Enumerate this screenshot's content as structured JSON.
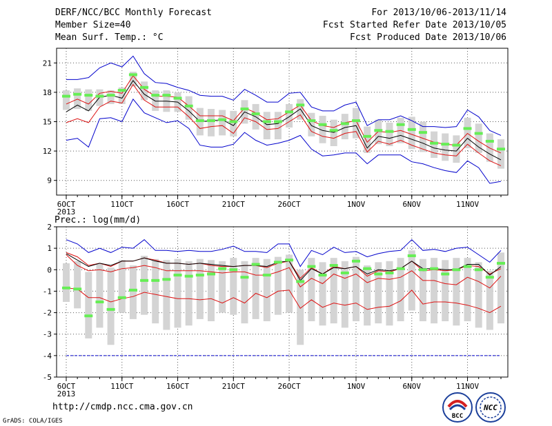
{
  "header": {
    "title": "DERF/NCC/BCC Monthly Forecast",
    "member_size": "Member Size=40",
    "variable": "Mean Surf. Temp.: °C",
    "period": "For 2013/10/06-2013/11/14",
    "started": "Fcst Started Refer Date 2013/10/05",
    "produced": "Fcst Produced Date 2013/10/06"
  },
  "footer": {
    "url": "http://cmdp.ncc.cma.gov.cn",
    "grads": "GrADS: COLA/IGES",
    "logo_left_text": "BCC",
    "logo_right_text": "NCC"
  },
  "colors": {
    "box": "#d4d4d4",
    "median": "#66ee55",
    "mean": "#000000",
    "spread": "#dd1111",
    "envelope": "#0000cc",
    "grid": "#555555"
  },
  "chart_data": [
    {
      "type": "line",
      "title": "Mean Surf. Temp.: °C",
      "ylim": [
        7.5,
        22.5
      ],
      "yticks": [
        9,
        12,
        15,
        18,
        21
      ],
      "x": [
        "2013-10-06",
        "2013-10-07",
        "2013-10-08",
        "2013-10-09",
        "2013-10-10",
        "2013-10-11",
        "2013-10-12",
        "2013-10-13",
        "2013-10-14",
        "2013-10-15",
        "2013-10-16",
        "2013-10-17",
        "2013-10-18",
        "2013-10-19",
        "2013-10-20",
        "2013-10-21",
        "2013-10-22",
        "2013-10-23",
        "2013-10-24",
        "2013-10-25",
        "2013-10-26",
        "2013-10-27",
        "2013-10-28",
        "2013-10-29",
        "2013-10-30",
        "2013-10-31",
        "2013-11-01",
        "2013-11-02",
        "2013-11-03",
        "2013-11-04",
        "2013-11-05",
        "2013-11-06",
        "2013-11-07",
        "2013-11-08",
        "2013-11-09",
        "2013-11-10",
        "2013-11-11",
        "2013-11-12",
        "2013-11-13",
        "2013-11-14"
      ],
      "xtick_labels": [
        {
          "x": "2013-10-06",
          "label": "6OCT",
          "sub": "2013"
        },
        {
          "x": "2013-10-11",
          "label": "11OCT"
        },
        {
          "x": "2013-10-16",
          "label": "16OCT"
        },
        {
          "x": "2013-10-21",
          "label": "21OCT"
        },
        {
          "x": "2013-10-26",
          "label": "26OCT"
        },
        {
          "x": "2013-11-01",
          "label": "1NOV"
        },
        {
          "x": "2013-11-06",
          "label": "6NOV"
        },
        {
          "x": "2013-11-11",
          "label": "11NOV"
        }
      ],
      "series": [
        {
          "role": "mean",
          "values": [
            16.0,
            16.7,
            16.1,
            17.5,
            17.7,
            17.4,
            19.2,
            17.8,
            17.1,
            17.1,
            17.0,
            16.1,
            15.0,
            15.1,
            15.2,
            14.6,
            16.0,
            15.5,
            14.7,
            14.8,
            15.5,
            16.3,
            14.6,
            14.1,
            13.9,
            14.4,
            14.6,
            12.3,
            13.5,
            13.3,
            13.6,
            13.2,
            12.8,
            12.3,
            12.1,
            12.0,
            13.3,
            12.4,
            11.7,
            11.1
          ]
        },
        {
          "role": "mean_plus_sd",
          "values": [
            16.8,
            17.3,
            16.8,
            17.9,
            18.1,
            17.9,
            19.7,
            18.3,
            17.6,
            17.6,
            17.5,
            16.6,
            15.6,
            15.6,
            15.6,
            15.1,
            16.4,
            15.9,
            15.2,
            15.3,
            16.0,
            16.7,
            15.1,
            14.6,
            14.4,
            14.9,
            15.1,
            12.9,
            14.0,
            13.9,
            14.1,
            13.7,
            13.3,
            12.9,
            12.7,
            12.6,
            13.8,
            13.0,
            12.3,
            11.8
          ]
        },
        {
          "role": "mean_minus_sd",
          "values": [
            14.9,
            15.3,
            14.9,
            16.5,
            17.1,
            16.9,
            18.8,
            17.2,
            16.5,
            16.5,
            16.5,
            15.5,
            14.3,
            14.5,
            14.6,
            13.8,
            15.4,
            15.0,
            14.2,
            14.3,
            15.0,
            15.7,
            14.0,
            13.5,
            13.3,
            13.8,
            14.0,
            11.9,
            13.0,
            12.7,
            13.1,
            12.6,
            12.2,
            11.8,
            11.6,
            11.5,
            12.7,
            11.8,
            11.0,
            10.5
          ]
        },
        {
          "role": "ensemble_max",
          "values": [
            19.3,
            19.3,
            19.5,
            20.5,
            21.0,
            20.6,
            21.7,
            19.9,
            19.0,
            18.9,
            18.5,
            18.2,
            17.7,
            17.6,
            17.6,
            17.2,
            18.3,
            17.7,
            17.0,
            17.0,
            17.9,
            18.0,
            16.5,
            16.1,
            16.1,
            16.7,
            17.0,
            14.6,
            15.2,
            15.2,
            15.6,
            15.1,
            14.5,
            14.5,
            14.4,
            14.5,
            16.2,
            15.5,
            14.1,
            13.6
          ]
        },
        {
          "role": "ensemble_min",
          "values": [
            13.1,
            13.3,
            12.4,
            15.3,
            15.4,
            15.0,
            17.3,
            15.9,
            15.4,
            14.9,
            15.1,
            14.3,
            12.6,
            12.4,
            12.4,
            12.7,
            13.9,
            13.1,
            12.6,
            12.8,
            13.1,
            13.6,
            12.2,
            11.5,
            11.6,
            11.8,
            11.8,
            10.7,
            11.6,
            11.6,
            11.6,
            10.9,
            10.7,
            10.3,
            10.0,
            9.8,
            11.0,
            10.3,
            8.7,
            8.9
          ]
        },
        {
          "role": "median",
          "values": [
            17.6,
            17.8,
            17.7,
            17.6,
            17.7,
            18.2,
            19.8,
            18.5,
            17.7,
            17.7,
            17.4,
            16.6,
            15.1,
            15.1,
            15.2,
            15.0,
            16.3,
            15.8,
            15.0,
            15.0,
            16.0,
            16.7,
            15.1,
            14.7,
            14.1,
            14.8,
            15.1,
            13.5,
            14.1,
            14.0,
            14.7,
            14.2,
            13.9,
            12.8,
            12.7,
            12.6,
            14.3,
            13.8,
            13.0,
            12.2
          ]
        },
        {
          "role": "box_upper",
          "values": [
            18.2,
            18.4,
            18.3,
            18.3,
            18.2,
            18.5,
            20.1,
            19.1,
            18.2,
            18.2,
            18.0,
            17.6,
            16.4,
            16.3,
            16.2,
            16.1,
            17.2,
            16.8,
            16.0,
            16.0,
            16.8,
            17.3,
            15.9,
            15.6,
            15.2,
            15.8,
            16.4,
            14.5,
            15.2,
            14.9,
            15.4,
            15.5,
            15.0,
            14.0,
            13.8,
            13.6,
            15.4,
            14.8,
            13.8,
            13.2
          ]
        },
        {
          "role": "box_lower",
          "values": [
            16.2,
            16.3,
            16.1,
            16.6,
            16.8,
            16.8,
            18.6,
            17.2,
            16.1,
            16.0,
            16.0,
            15.2,
            13.6,
            13.5,
            13.6,
            13.5,
            14.8,
            14.2,
            13.2,
            13.2,
            14.4,
            15.2,
            13.5,
            12.8,
            12.5,
            13.2,
            13.3,
            11.8,
            12.7,
            12.5,
            12.8,
            12.2,
            11.9,
            11.3,
            11.0,
            10.8,
            12.3,
            11.8,
            10.9,
            10.2
          ]
        }
      ]
    },
    {
      "type": "line",
      "title": "Prec.: log(mm/d)",
      "ylim": [
        -5,
        2
      ],
      "yticks": [
        -5,
        -4,
        -3,
        -2,
        -1,
        0,
        1,
        2
      ],
      "x": [
        "2013-10-06",
        "2013-10-07",
        "2013-10-08",
        "2013-10-09",
        "2013-10-10",
        "2013-10-11",
        "2013-10-12",
        "2013-10-13",
        "2013-10-14",
        "2013-10-15",
        "2013-10-16",
        "2013-10-17",
        "2013-10-18",
        "2013-10-19",
        "2013-10-20",
        "2013-10-21",
        "2013-10-22",
        "2013-10-23",
        "2013-10-24",
        "2013-10-25",
        "2013-10-26",
        "2013-10-27",
        "2013-10-28",
        "2013-10-29",
        "2013-10-30",
        "2013-10-31",
        "2013-11-01",
        "2013-11-02",
        "2013-11-03",
        "2013-11-04",
        "2013-11-05",
        "2013-11-06",
        "2013-11-07",
        "2013-11-08",
        "2013-11-09",
        "2013-11-10",
        "2013-11-11",
        "2013-11-12",
        "2013-11-13",
        "2013-11-14"
      ],
      "xtick_labels": [
        {
          "x": "2013-10-06",
          "label": "6OCT",
          "sub": "2013"
        },
        {
          "x": "2013-10-11",
          "label": "11OCT"
        },
        {
          "x": "2013-10-16",
          "label": "16OCT"
        },
        {
          "x": "2013-10-21",
          "label": "21OCT"
        },
        {
          "x": "2013-10-26",
          "label": "26OCT"
        },
        {
          "x": "2013-11-01",
          "label": "1NOV"
        },
        {
          "x": "2013-11-06",
          "label": "6NOV"
        },
        {
          "x": "2013-11-11",
          "label": "11NOV"
        }
      ],
      "series": [
        {
          "role": "mean",
          "values": [
            0.75,
            0.45,
            0.15,
            0.3,
            0.2,
            0.4,
            0.4,
            0.55,
            0.4,
            0.3,
            0.3,
            0.25,
            0.3,
            0.25,
            0.2,
            0.15,
            0.2,
            0.2,
            0.15,
            0.35,
            0.4,
            -0.5,
            0.05,
            -0.2,
            0.1,
            0.05,
            0.15,
            -0.2,
            0.0,
            -0.05,
            0.05,
            0.4,
            0.05,
            0.05,
            0.0,
            0.0,
            0.25,
            0.25,
            -0.25,
            0.15
          ]
        },
        {
          "role": "mean_plus_sd",
          "values": [
            0.8,
            0.6,
            0.2,
            0.3,
            0.15,
            0.4,
            0.4,
            0.55,
            0.45,
            0.3,
            0.3,
            0.25,
            0.3,
            0.2,
            0.15,
            0.15,
            0.2,
            0.2,
            0.1,
            0.3,
            0.4,
            -0.4,
            0.1,
            -0.2,
            0.15,
            0.05,
            0.15,
            -0.3,
            -0.05,
            -0.1,
            0.05,
            0.4,
            -0.05,
            0.0,
            -0.05,
            0.0,
            0.2,
            0.15,
            -0.2,
            0.05
          ]
        },
        {
          "role": "mean_minus_sd",
          "values": [
            0.7,
            0.2,
            -0.05,
            0.0,
            -0.1,
            0.05,
            0.1,
            0.2,
            0.1,
            -0.05,
            -0.05,
            -0.05,
            -0.05,
            -0.1,
            -0.15,
            -0.1,
            -0.1,
            -0.25,
            -0.25,
            -0.1,
            0.1,
            -0.8,
            -0.4,
            -0.65,
            -0.2,
            -0.4,
            -0.2,
            -0.6,
            -0.4,
            -0.45,
            -0.35,
            -0.05,
            -0.5,
            -0.5,
            -0.65,
            -0.7,
            -0.35,
            -0.55,
            -0.85,
            -0.3
          ]
        },
        {
          "role": "lower_band",
          "values": [
            -0.85,
            -0.9,
            -1.3,
            -1.3,
            -1.5,
            -1.35,
            -1.25,
            -1.05,
            -1.15,
            -1.25,
            -1.35,
            -1.35,
            -1.4,
            -1.35,
            -1.55,
            -1.3,
            -1.55,
            -1.1,
            -1.3,
            -1.0,
            -0.95,
            -1.8,
            -1.4,
            -1.75,
            -1.55,
            -1.65,
            -1.55,
            -1.85,
            -1.75,
            -1.7,
            -1.45,
            -0.95,
            -1.6,
            -1.5,
            -1.5,
            -1.55,
            -1.65,
            -1.8,
            -2.0,
            -1.7
          ]
        },
        {
          "role": "ensemble_max",
          "values": [
            1.4,
            1.2,
            0.8,
            1.0,
            0.8,
            1.05,
            1.0,
            1.4,
            0.9,
            0.9,
            0.85,
            0.9,
            0.85,
            0.85,
            0.95,
            1.1,
            0.85,
            0.85,
            0.8,
            1.2,
            1.2,
            0.15,
            0.9,
            0.7,
            1.05,
            0.8,
            0.85,
            0.6,
            0.75,
            0.85,
            0.9,
            1.4,
            0.9,
            0.95,
            0.85,
            1.0,
            1.05,
            0.7,
            0.35,
            0.9
          ]
        },
        {
          "role": "ensemble_min",
          "values": [
            -4,
            -4,
            -4,
            -4,
            -4,
            -4,
            -4,
            -4,
            -4,
            -4,
            -4,
            -4,
            -4,
            -4,
            -4,
            -4,
            -4,
            -4,
            -4,
            -4,
            -4,
            -4,
            -4,
            -4,
            -4,
            -4,
            -4,
            -4,
            -4,
            -4,
            -4,
            -4,
            -4,
            -4,
            -4,
            -4,
            -4,
            -4,
            -4,
            -4
          ]
        },
        {
          "role": "median",
          "values": [
            -0.85,
            -0.9,
            -2.15,
            -1.5,
            -1.85,
            -1.3,
            -0.95,
            -0.5,
            -0.5,
            -0.45,
            -0.25,
            -0.3,
            -0.25,
            -0.2,
            0.05,
            0.0,
            -0.35,
            0.25,
            -0.25,
            0.35,
            0.45,
            -0.55,
            0.15,
            -0.25,
            0.2,
            -0.15,
            0.4,
            0.05,
            -0.2,
            -0.15,
            0.05,
            0.65,
            0.0,
            0.05,
            -0.2,
            0.0,
            0.15,
            0.0,
            -0.35,
            0.3
          ]
        },
        {
          "role": "box_upper",
          "values": [
            0.3,
            0.4,
            -0.1,
            0.3,
            0.1,
            0.45,
            0.2,
            0.65,
            0.5,
            0.45,
            0.5,
            0.4,
            0.5,
            0.45,
            0.4,
            0.55,
            0.4,
            0.55,
            0.5,
            0.6,
            0.7,
            0.0,
            0.55,
            0.35,
            0.55,
            0.4,
            0.6,
            0.2,
            0.35,
            0.4,
            0.55,
            0.9,
            0.5,
            0.55,
            0.45,
            0.55,
            0.55,
            0.35,
            -0.05,
            0.8
          ]
        },
        {
          "role": "box_lower",
          "values": [
            -1.5,
            -1.8,
            -3.2,
            -2.7,
            -3.5,
            -2.0,
            -2.3,
            -2.1,
            -2.5,
            -2.8,
            -2.7,
            -2.6,
            -2.3,
            -2.4,
            -2.0,
            -2.1,
            -2.5,
            -2.3,
            -2.4,
            -2.1,
            -2.0,
            -3.5,
            -2.4,
            -2.6,
            -2.5,
            -2.7,
            -2.4,
            -2.6,
            -2.5,
            -2.6,
            -2.4,
            -1.9,
            -2.4,
            -2.5,
            -2.4,
            -2.6,
            -2.4,
            -2.7,
            -2.8,
            -2.5
          ]
        }
      ]
    }
  ]
}
